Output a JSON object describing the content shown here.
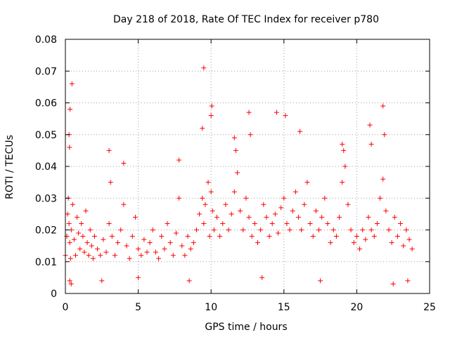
{
  "chart_data": {
    "type": "scatter",
    "title": "Day 218 of 2018, Rate Of TEC Index for receiver p780",
    "xlabel": "GPS time / hours",
    "ylabel": "ROTI / TECUs",
    "xlim": [
      0,
      25
    ],
    "ylim": [
      0,
      0.08
    ],
    "xticks": [
      0,
      5,
      10,
      15,
      20,
      25
    ],
    "xtick_labels": [
      "0",
      "5",
      "10",
      "15",
      "20",
      "25"
    ],
    "yticks": [
      0,
      0.01,
      0.02,
      0.03,
      0.04,
      0.05,
      0.06,
      0.07,
      0.08
    ],
    "ytick_labels": [
      "0",
      "0.01",
      "0.02",
      "0.03",
      "0.04",
      "0.05",
      "0.06",
      "0.07",
      "0.08"
    ],
    "grid": true,
    "marker": "+",
    "series": [
      {
        "name": "ROTI",
        "color": "#ff0000",
        "x": [
          0.0,
          0.1,
          0.15,
          0.2,
          0.25,
          0.3,
          0.35,
          0.4,
          0.5,
          0.6,
          0.7,
          0.8,
          0.9,
          1.0,
          1.1,
          1.2,
          1.3,
          1.4,
          1.5,
          1.6,
          1.7,
          1.8,
          1.9,
          2.0,
          2.2,
          2.4,
          2.6,
          2.8,
          3.0,
          3.1,
          3.2,
          3.4,
          3.6,
          3.8,
          4.0,
          4.2,
          4.4,
          4.6,
          4.8,
          5.0,
          5.2,
          5.4,
          5.6,
          5.8,
          6.0,
          6.2,
          6.4,
          6.6,
          6.8,
          7.0,
          7.2,
          7.4,
          7.6,
          7.8,
          8.0,
          8.2,
          8.4,
          8.6,
          8.8,
          9.0,
          9.2,
          9.4,
          9.5,
          9.6,
          9.8,
          9.9,
          10.0,
          10.1,
          10.2,
          10.4,
          10.6,
          10.8,
          11.0,
          11.2,
          11.4,
          11.6,
          11.8,
          12.0,
          12.2,
          12.4,
          12.6,
          12.8,
          13.0,
          13.2,
          13.4,
          13.6,
          13.8,
          14.0,
          14.2,
          14.4,
          14.6,
          14.8,
          15.0,
          15.2,
          15.4,
          15.6,
          15.8,
          16.0,
          16.2,
          16.4,
          16.6,
          16.8,
          17.0,
          17.2,
          17.4,
          17.6,
          17.8,
          18.0,
          18.2,
          18.4,
          18.6,
          18.8,
          19.0,
          19.2,
          19.4,
          19.6,
          19.8,
          20.0,
          20.2,
          20.4,
          20.6,
          20.8,
          21.0,
          21.2,
          21.4,
          21.6,
          21.8,
          22.0,
          22.2,
          22.4,
          22.6,
          22.8,
          23.0,
          23.2,
          23.4,
          23.6,
          23.8,
          0.25,
          0.28,
          0.32,
          0.45,
          9.4,
          9.5,
          10.0,
          10.05,
          12.6,
          12.7,
          14.5,
          15.1,
          21.8,
          21.9,
          20.9,
          21.0,
          11.6,
          11.7,
          16.1,
          19.0,
          19.1,
          3.0,
          4.0,
          7.8,
          0.3,
          0.4,
          2.5,
          5.0,
          8.5,
          13.5,
          17.5,
          22.5,
          23.5
        ],
        "y": [
          0.012,
          0.018,
          0.025,
          0.03,
          0.022,
          0.016,
          0.011,
          0.02,
          0.028,
          0.017,
          0.012,
          0.024,
          0.019,
          0.014,
          0.022,
          0.018,
          0.013,
          0.026,
          0.016,
          0.012,
          0.02,
          0.015,
          0.011,
          0.018,
          0.014,
          0.012,
          0.017,
          0.013,
          0.022,
          0.035,
          0.018,
          0.012,
          0.016,
          0.02,
          0.028,
          0.015,
          0.011,
          0.018,
          0.024,
          0.014,
          0.012,
          0.017,
          0.013,
          0.016,
          0.02,
          0.013,
          0.011,
          0.018,
          0.014,
          0.022,
          0.016,
          0.012,
          0.019,
          0.03,
          0.015,
          0.012,
          0.018,
          0.014,
          0.016,
          0.02,
          0.025,
          0.03,
          0.022,
          0.028,
          0.035,
          0.018,
          0.032,
          0.026,
          0.02,
          0.024,
          0.018,
          0.022,
          0.028,
          0.02,
          0.025,
          0.032,
          0.038,
          0.026,
          0.02,
          0.03,
          0.024,
          0.018,
          0.022,
          0.016,
          0.02,
          0.028,
          0.024,
          0.018,
          0.022,
          0.025,
          0.019,
          0.027,
          0.03,
          0.022,
          0.02,
          0.026,
          0.032,
          0.024,
          0.02,
          0.028,
          0.035,
          0.022,
          0.018,
          0.026,
          0.02,
          0.024,
          0.03,
          0.022,
          0.016,
          0.02,
          0.018,
          0.024,
          0.035,
          0.04,
          0.028,
          0.02,
          0.016,
          0.018,
          0.014,
          0.02,
          0.017,
          0.024,
          0.02,
          0.018,
          0.022,
          0.03,
          0.036,
          0.026,
          0.02,
          0.016,
          0.024,
          0.018,
          0.022,
          0.015,
          0.02,
          0.017,
          0.014,
          0.05,
          0.046,
          0.058,
          0.066,
          0.052,
          0.071,
          0.056,
          0.059,
          0.057,
          0.05,
          0.057,
          0.056,
          0.059,
          0.05,
          0.053,
          0.047,
          0.049,
          0.045,
          0.051,
          0.047,
          0.045,
          0.045,
          0.041,
          0.042,
          0.004,
          0.003,
          0.004,
          0.005,
          0.004,
          0.005,
          0.004,
          0.003,
          0.004
        ]
      }
    ]
  }
}
